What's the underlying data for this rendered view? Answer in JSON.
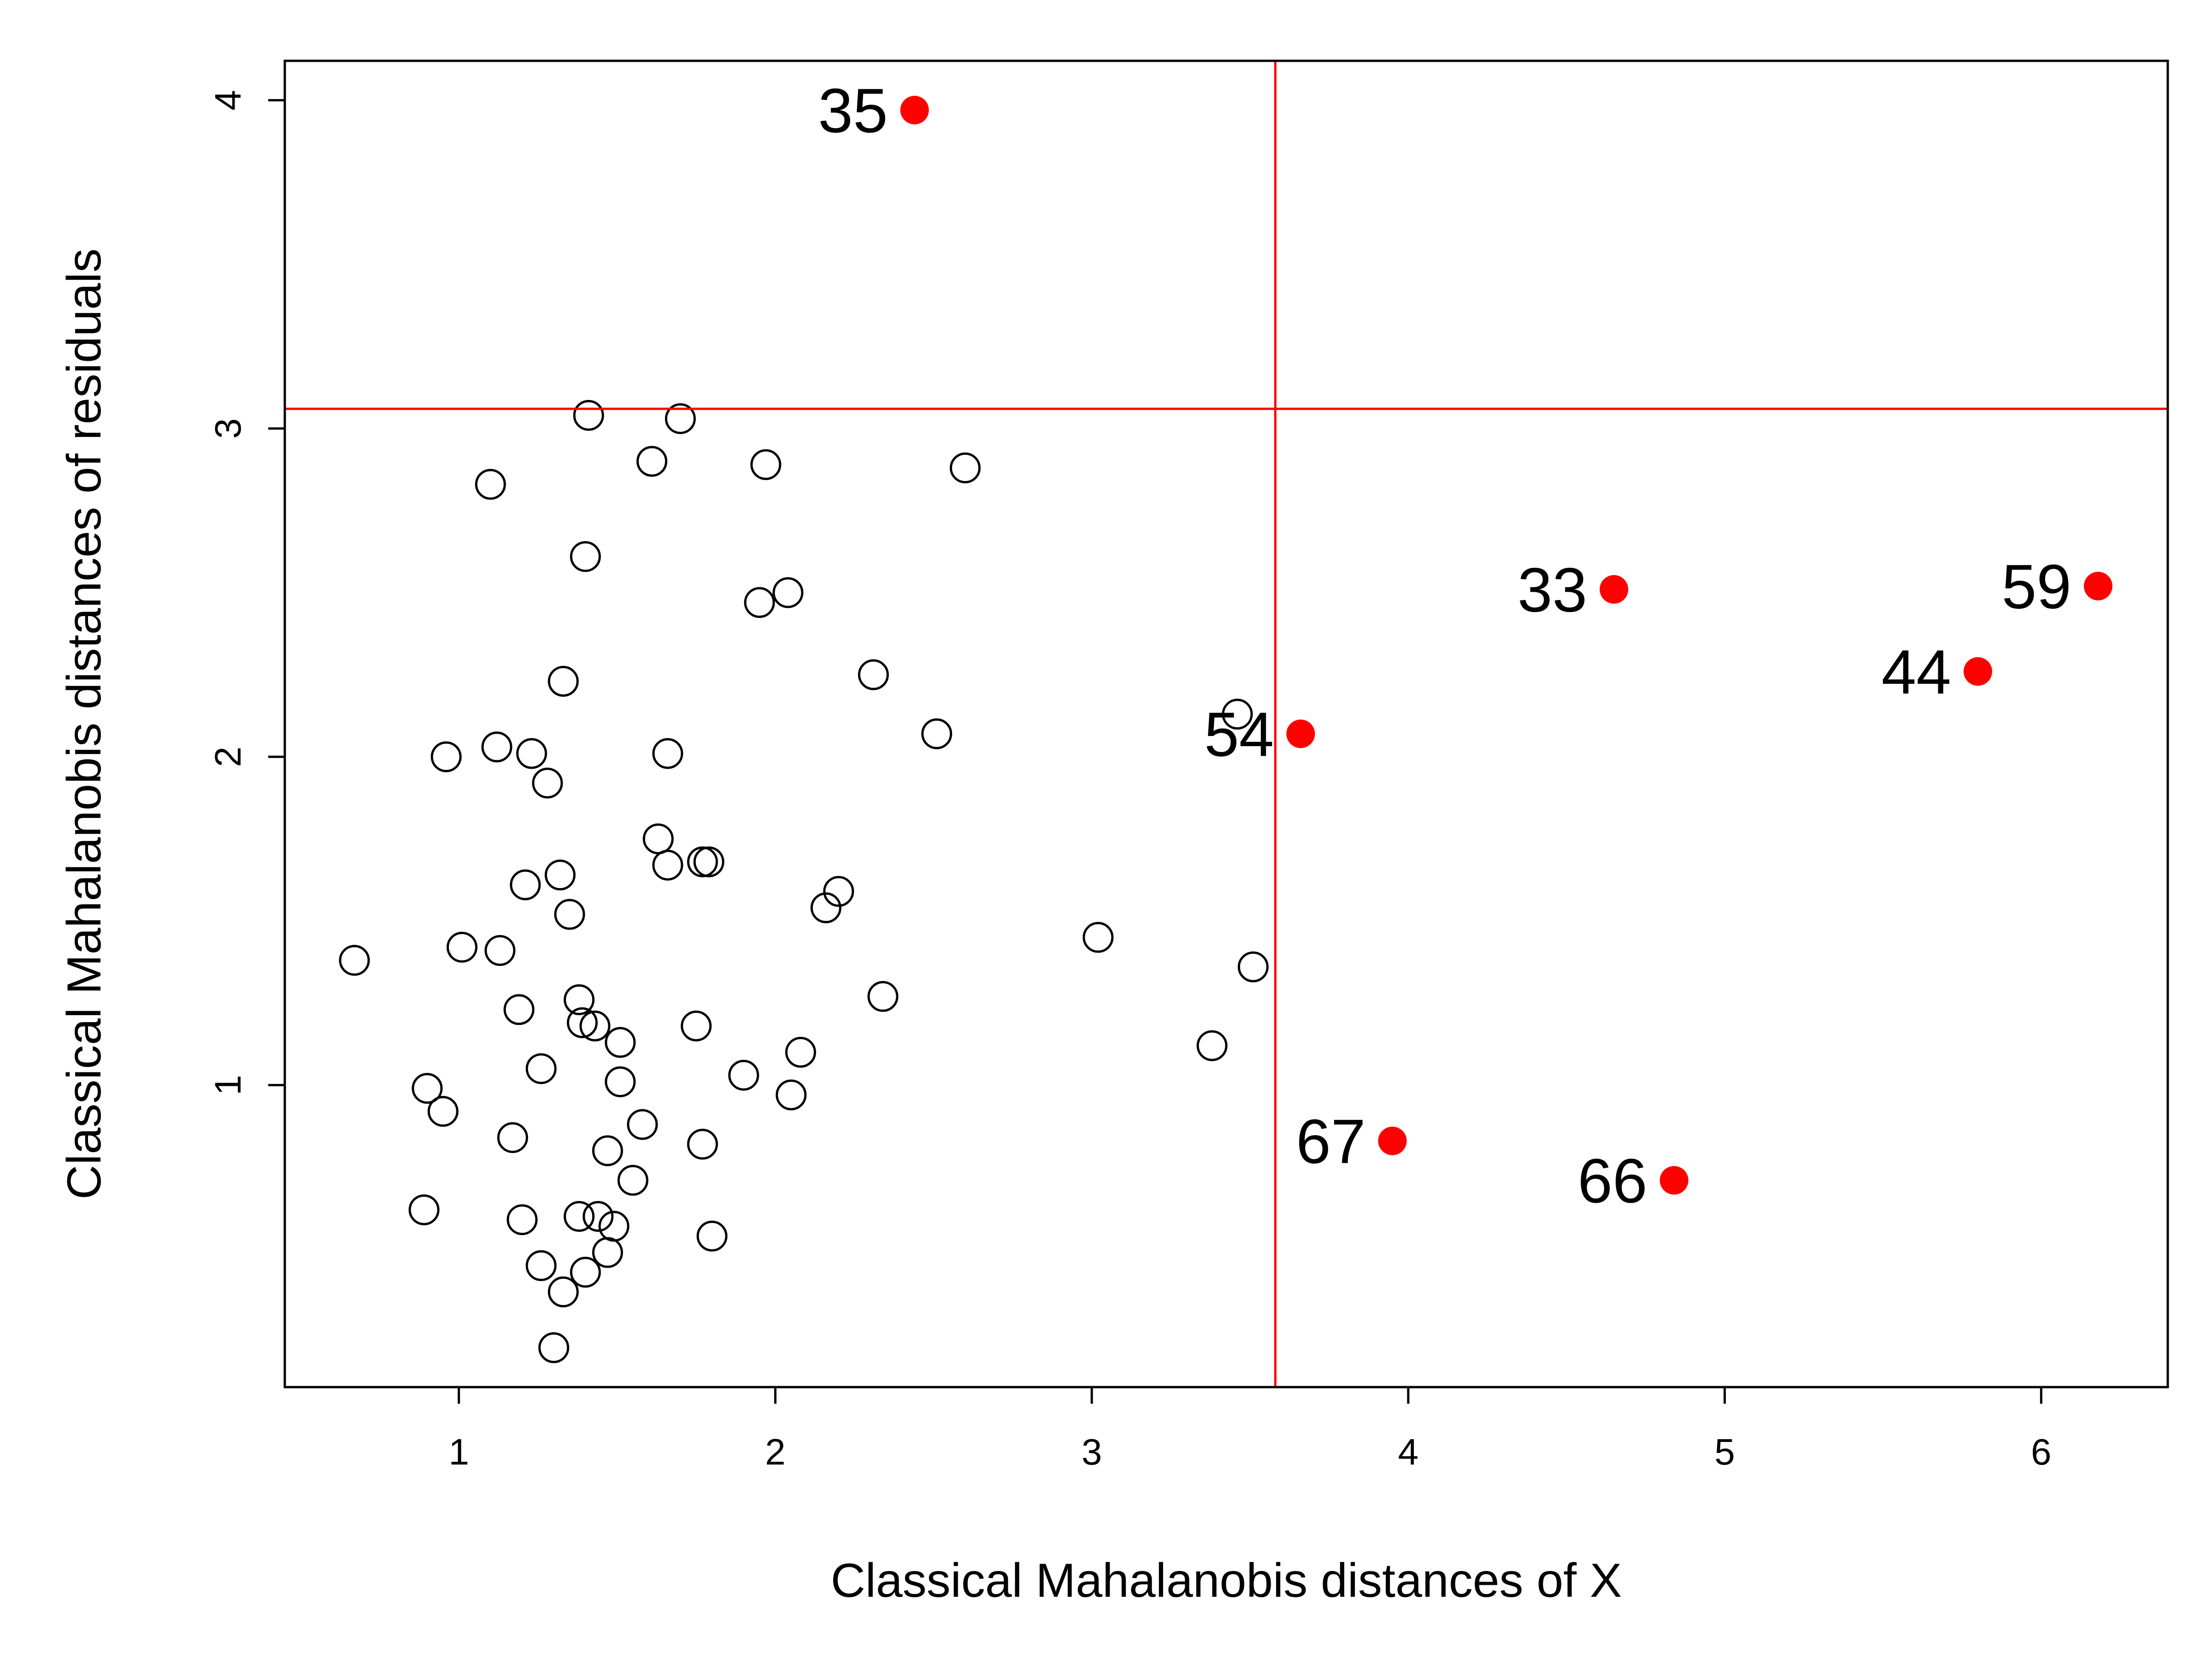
{
  "chart_data": {
    "type": "scatter",
    "title": "",
    "xlabel": "Classical Mahalanobis distances of X",
    "ylabel": "Classical Mahalanobis distances of residuals",
    "xlim": [
      0.45,
      6.4
    ],
    "ylim": [
      0.08,
      4.12
    ],
    "x_ticks": [
      1,
      2,
      3,
      4,
      5,
      6
    ],
    "y_ticks": [
      1,
      2,
      3,
      4
    ],
    "grid": false,
    "legend": "none",
    "cutoff_x": 3.58,
    "cutoff_y": 3.06,
    "colors": {
      "outlier": "#ff0000",
      "cutoff_line": "#ff0000",
      "regular": "#000000"
    },
    "regular_points": [
      {
        "x": 0.67,
        "y": 1.38
      },
      {
        "x": 0.9,
        "y": 0.99
      },
      {
        "x": 0.89,
        "y": 0.62
      },
      {
        "x": 0.95,
        "y": 0.92
      },
      {
        "x": 0.96,
        "y": 2.0
      },
      {
        "x": 1.01,
        "y": 1.42
      },
      {
        "x": 1.1,
        "y": 2.83
      },
      {
        "x": 1.12,
        "y": 2.03
      },
      {
        "x": 1.13,
        "y": 1.41
      },
      {
        "x": 1.17,
        "y": 0.84
      },
      {
        "x": 1.19,
        "y": 1.23
      },
      {
        "x": 1.2,
        "y": 0.59
      },
      {
        "x": 1.21,
        "y": 1.61
      },
      {
        "x": 1.23,
        "y": 2.01
      },
      {
        "x": 1.26,
        "y": 1.05
      },
      {
        "x": 1.26,
        "y": 0.45
      },
      {
        "x": 1.28,
        "y": 1.92
      },
      {
        "x": 1.3,
        "y": 0.2
      },
      {
        "x": 1.32,
        "y": 1.64
      },
      {
        "x": 1.33,
        "y": 2.23
      },
      {
        "x": 1.33,
        "y": 0.37
      },
      {
        "x": 1.35,
        "y": 1.52
      },
      {
        "x": 1.38,
        "y": 1.26
      },
      {
        "x": 1.38,
        "y": 0.6
      },
      {
        "x": 1.39,
        "y": 1.19
      },
      {
        "x": 1.4,
        "y": 2.61
      },
      {
        "x": 1.4,
        "y": 0.43
      },
      {
        "x": 1.41,
        "y": 3.04
      },
      {
        "x": 1.43,
        "y": 1.18
      },
      {
        "x": 1.44,
        "y": 0.6
      },
      {
        "x": 1.47,
        "y": 0.8
      },
      {
        "x": 1.47,
        "y": 0.49
      },
      {
        "x": 1.49,
        "y": 0.57
      },
      {
        "x": 1.51,
        "y": 1.13
      },
      {
        "x": 1.51,
        "y": 1.01
      },
      {
        "x": 1.55,
        "y": 0.71
      },
      {
        "x": 1.58,
        "y": 0.88
      },
      {
        "x": 1.61,
        "y": 2.9
      },
      {
        "x": 1.63,
        "y": 1.75
      },
      {
        "x": 1.66,
        "y": 2.01
      },
      {
        "x": 1.66,
        "y": 1.67
      },
      {
        "x": 1.7,
        "y": 3.03
      },
      {
        "x": 1.75,
        "y": 1.18
      },
      {
        "x": 1.77,
        "y": 1.68
      },
      {
        "x": 1.77,
        "y": 0.82
      },
      {
        "x": 1.79,
        "y": 1.68
      },
      {
        "x": 1.8,
        "y": 0.54
      },
      {
        "x": 1.9,
        "y": 1.03
      },
      {
        "x": 1.95,
        "y": 2.47
      },
      {
        "x": 1.97,
        "y": 2.89
      },
      {
        "x": 2.04,
        "y": 2.5
      },
      {
        "x": 2.05,
        "y": 0.97
      },
      {
        "x": 2.08,
        "y": 1.1
      },
      {
        "x": 2.16,
        "y": 1.54
      },
      {
        "x": 2.2,
        "y": 1.59
      },
      {
        "x": 2.31,
        "y": 2.25
      },
      {
        "x": 2.34,
        "y": 1.27
      },
      {
        "x": 2.51,
        "y": 2.07
      },
      {
        "x": 2.6,
        "y": 2.88
      },
      {
        "x": 3.02,
        "y": 1.45
      },
      {
        "x": 3.38,
        "y": 1.12
      },
      {
        "x": 3.46,
        "y": 2.13
      },
      {
        "x": 3.51,
        "y": 1.36
      }
    ],
    "outliers": [
      {
        "label": "35",
        "x": 2.44,
        "y": 3.97
      },
      {
        "label": "33",
        "x": 4.65,
        "y": 2.51
      },
      {
        "label": "59",
        "x": 6.18,
        "y": 2.52
      },
      {
        "label": "44",
        "x": 5.8,
        "y": 2.26
      },
      {
        "label": "54",
        "x": 3.66,
        "y": 2.07
      },
      {
        "label": "67",
        "x": 3.95,
        "y": 0.83
      },
      {
        "label": "66",
        "x": 4.84,
        "y": 0.71
      }
    ]
  }
}
